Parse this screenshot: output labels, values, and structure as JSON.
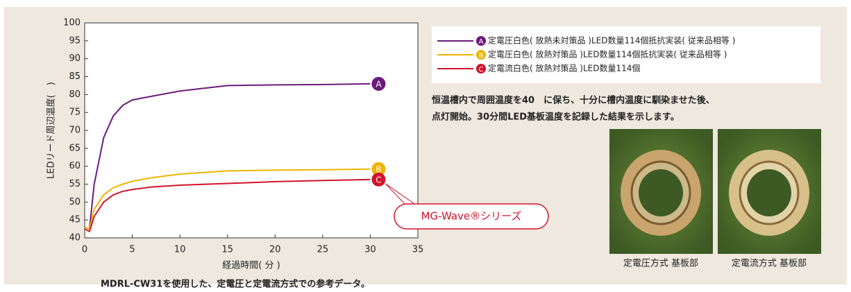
{
  "chart_data": {
    "type": "line",
    "x_label": "経過時間( 分 )",
    "y_label": "LEDリード周辺温度(　)",
    "x": [
      0,
      0.5,
      1,
      2,
      3,
      4,
      5,
      7,
      10,
      15,
      20,
      25,
      30
    ],
    "series": [
      {
        "name": "定電圧白色( 放熱未対策品 )LED数量114個抵抗実装( 従来品相等 )",
        "marker_label": "A",
        "color": "#6b1a7c",
        "values": [
          43,
          42.5,
          55,
          68,
          74,
          77,
          78.5,
          79.5,
          81,
          82.5,
          82.7,
          82.8,
          83
        ]
      },
      {
        "name": "定電圧白色( 放熱対策品 )LED数量114個抵抗実装( 従来品相等 )",
        "marker_label": "B",
        "color": "#f0b400",
        "values": [
          43,
          42.5,
          48,
          52,
          54,
          55,
          55.8,
          56.8,
          57.8,
          58.7,
          58.9,
          59,
          59.2
        ]
      },
      {
        "name": "定電流白色( 放熱対策品 )LED数量114個",
        "marker_label": "C",
        "color": "#d0142a",
        "values": [
          42.5,
          41.8,
          46,
          50,
          52,
          53,
          53.5,
          54.2,
          54.7,
          55.2,
          55.7,
          56,
          56.3
        ]
      }
    ],
    "xlim": [
      0,
      35
    ],
    "xticks": [
      0,
      5,
      10,
      15,
      20,
      25,
      30,
      35
    ],
    "ylim": [
      40,
      100
    ],
    "yticks": [
      40,
      45,
      50,
      55,
      60,
      65,
      70,
      75,
      80,
      85,
      90,
      95,
      100
    ],
    "grid": false,
    "callout": "MG-Wave®シリーズ",
    "caption": "MDRL-CW31を使用した、定電圧と定電流方式での参考データ。"
  },
  "description": [
    "恒温槽内で周囲温度を40　に保ち、十分に槽内温度に馴染ませた後、",
    "点灯開始。30分間LED基板温度を記録した結果を示します。"
  ],
  "photos": [
    {
      "caption": "定電圧方式 基板部"
    },
    {
      "caption": "定電流方式 基板部"
    }
  ]
}
